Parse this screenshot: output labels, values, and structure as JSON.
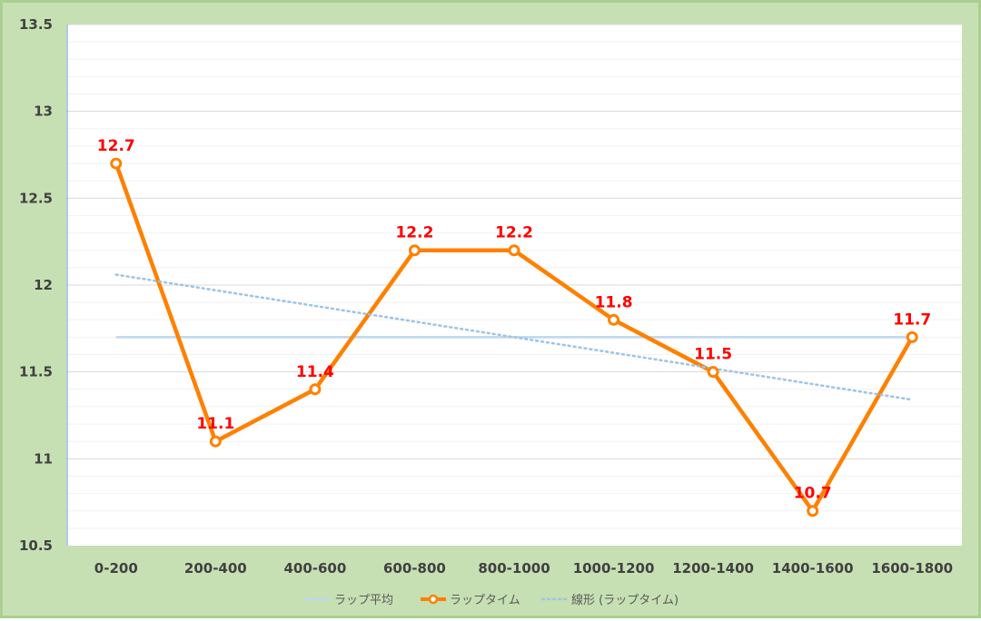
{
  "chart_data": {
    "type": "line",
    "categories": [
      "0-200",
      "200-400",
      "400-600",
      "600-800",
      "800-1000",
      "1000-1200",
      "1200-1400",
      "1400-1600",
      "1600-1800"
    ],
    "series": [
      {
        "name": "ラップ平均",
        "values": [
          11.7,
          11.7,
          11.7,
          11.7,
          11.7,
          11.7,
          11.7,
          11.7,
          11.7
        ],
        "color": "#bdd7ee",
        "style": "solid"
      },
      {
        "name": "ラップタイム",
        "values": [
          12.7,
          11.1,
          11.4,
          12.2,
          12.2,
          11.8,
          11.5,
          10.7,
          11.7
        ],
        "color": "#ff8000",
        "style": "solid-markers",
        "data_labels": [
          "12.7",
          "11.1",
          "11.4",
          "12.2",
          "12.2",
          "11.8",
          "11.5",
          "10.7",
          "11.7"
        ]
      },
      {
        "name": "線形 (ラップタイム)",
        "values": [
          12.06,
          11.97,
          11.88,
          11.79,
          11.7,
          11.61,
          11.52,
          11.43,
          11.34
        ],
        "color": "#9dc3e6",
        "style": "dotted"
      }
    ],
    "yticks": [
      "13.5",
      "13",
      "12.5",
      "12",
      "11.5",
      "11",
      "10.5"
    ],
    "ylim": [
      10.5,
      13.5
    ],
    "grid": true,
    "legend_position": "bottom",
    "data_label_color": "#ff0000"
  }
}
